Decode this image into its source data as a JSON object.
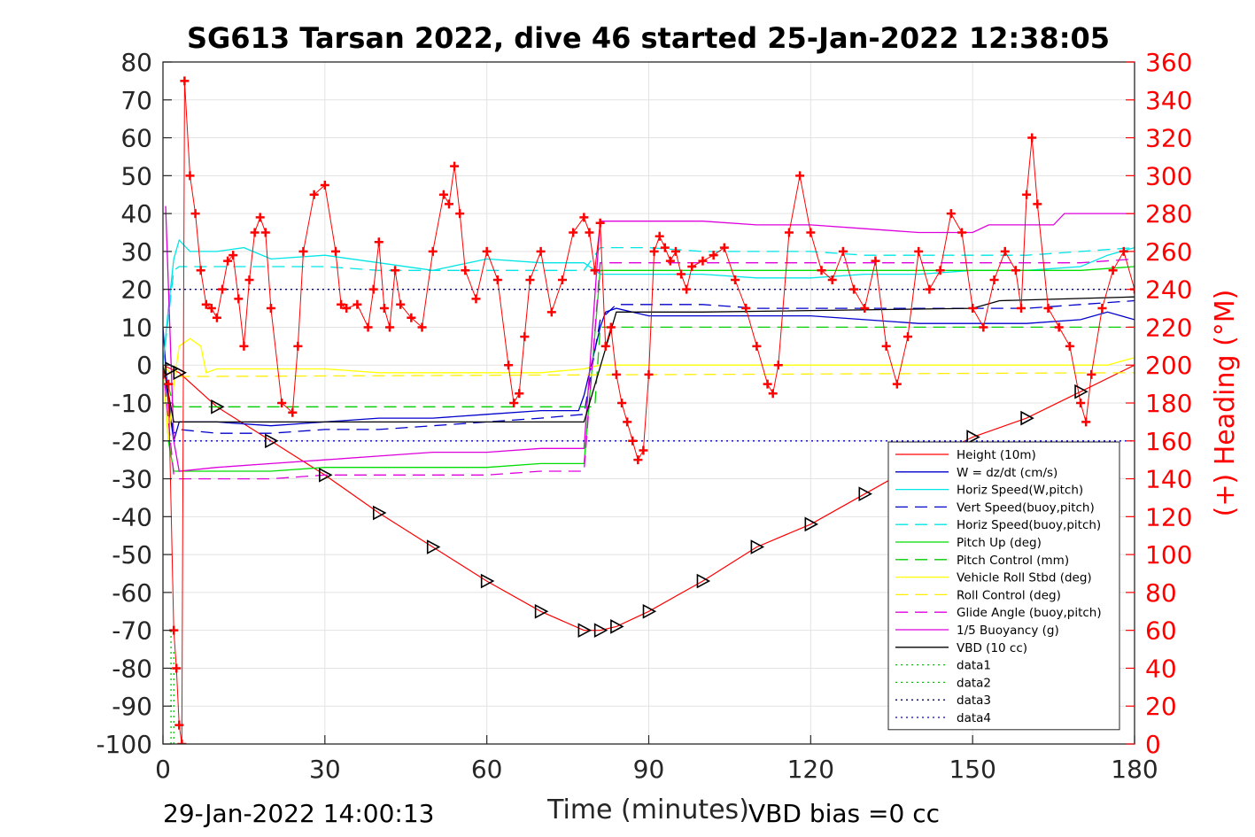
{
  "chart_data": {
    "type": "line",
    "title": "SG613 Tarsan 2022, dive 46 started 25-Jan-2022 12:38:05",
    "xlabel": "Time (minutes)",
    "ylabel_right": "(+) Heading (°M)",
    "footer_left": "29-Jan-2022 14:00:13",
    "footer_right": "VBD bias =0 cc",
    "xlim": [
      0,
      180
    ],
    "ylim_left": [
      -100,
      80
    ],
    "ylim_right": [
      0,
      360
    ],
    "xticks": [
      "0",
      "30",
      "60",
      "90",
      "120",
      "150",
      "180"
    ],
    "yticks_left": [
      "80",
      "70",
      "60",
      "50",
      "40",
      "30",
      "20",
      "10",
      "0",
      "-10",
      "-20",
      "-30",
      "-40",
      "-50",
      "-60",
      "-70",
      "-80",
      "-90",
      "-100"
    ],
    "yticks_right": [
      "360",
      "340",
      "320",
      "300",
      "280",
      "260",
      "240",
      "220",
      "200",
      "180",
      "160",
      "140",
      "120",
      "100",
      "80",
      "60",
      "40",
      "20",
      "0"
    ],
    "grid": true,
    "legend_position": "lower-right inside",
    "legend": [
      {
        "label": "Height (10m)",
        "color": "#ff0000",
        "dash": "solid"
      },
      {
        "label": "W = dz/dt (cm/s)",
        "color": "#0000cc",
        "dash": "solid"
      },
      {
        "label": "Horiz Speed(W,pitch)",
        "color": "#00e5e5",
        "dash": "solid"
      },
      {
        "label": "Vert Speed(buoy,pitch)",
        "color": "#0000cc",
        "dash": "dashed"
      },
      {
        "label": "Horiz Speed(buoy,pitch)",
        "color": "#00e5e5",
        "dash": "dashed"
      },
      {
        "label": "Pitch Up (deg)",
        "color": "#00dd00",
        "dash": "solid"
      },
      {
        "label": "Pitch Control (mm)",
        "color": "#00cc00",
        "dash": "dashed"
      },
      {
        "label": "Vehicle Roll Stbd (deg)",
        "color": "#ffff00",
        "dash": "solid"
      },
      {
        "label": "Roll Control (deg)",
        "color": "#ffee00",
        "dash": "dashed"
      },
      {
        "label": "Glide Angle (buoy,pitch)",
        "color": "#dd00dd",
        "dash": "dashed"
      },
      {
        "label": "1/5 Buoyancy (g)",
        "color": "#dd00dd",
        "dash": "solid"
      },
      {
        "label": "VBD (10 cc)",
        "color": "#000000",
        "dash": "solid"
      },
      {
        "label": "data1",
        "color": "#00cc00",
        "dash": "dotted"
      },
      {
        "label": "data2",
        "color": "#00cc00",
        "dash": "dotted"
      },
      {
        "label": "data3",
        "color": "#000066",
        "dash": "dotted"
      },
      {
        "label": "data4",
        "color": "#0000cc",
        "dash": "dotted"
      }
    ],
    "series": [
      {
        "name": "Height (10m)",
        "color": "#ff0000",
        "axis": "left",
        "x": [
          0,
          1.5,
          3,
          10,
          20,
          30,
          40,
          50,
          60,
          70,
          78,
          81,
          84,
          90,
          100,
          110,
          120,
          130,
          140,
          150,
          160,
          170,
          180
        ],
        "y": [
          0,
          -1,
          -2,
          -11,
          -20,
          -29,
          -39,
          -48,
          -57,
          -65,
          -70,
          -70,
          -69,
          -65,
          -57,
          -48,
          -42,
          -34,
          -26,
          -19,
          -14,
          -7,
          0
        ]
      },
      {
        "name": "W = dz/dt (cm/s)",
        "color": "#0000cc",
        "axis": "left",
        "x": [
          0,
          1,
          2,
          3,
          10,
          20,
          30,
          40,
          50,
          60,
          70,
          77,
          78,
          81,
          82,
          84,
          90,
          100,
          110,
          120,
          130,
          140,
          150,
          160,
          170,
          175,
          180
        ],
        "y": [
          10,
          -10,
          -20,
          -15,
          -15,
          -16,
          -15,
          -14,
          -14,
          -13,
          -12,
          -12,
          -8,
          10,
          14,
          15,
          13,
          13,
          13,
          13,
          12,
          11,
          11,
          11,
          12,
          14,
          12
        ]
      },
      {
        "name": "Horiz Speed(W,pitch)",
        "color": "#00e5e5",
        "axis": "left",
        "x": [
          0,
          1,
          2,
          3,
          5,
          10,
          15,
          20,
          30,
          40,
          50,
          60,
          70,
          78,
          81,
          84,
          90,
          100,
          110,
          120,
          130,
          140,
          150,
          160,
          170,
          175,
          180
        ],
        "y": [
          0,
          15,
          28,
          33,
          30,
          30,
          31,
          28,
          29,
          27,
          25,
          28,
          27,
          27,
          24,
          24,
          24,
          24,
          23,
          23,
          24,
          24,
          25,
          25,
          26,
          29,
          31
        ]
      },
      {
        "name": "Vert Speed(buoy,pitch)",
        "color": "#0000cc",
        "axis": "left",
        "x": [
          0,
          2,
          3,
          10,
          20,
          30,
          40,
          50,
          60,
          70,
          78,
          81,
          84,
          90,
          100,
          110,
          120,
          130,
          140,
          150,
          160,
          170,
          180
        ],
        "y": [
          0,
          -18,
          -17,
          -18,
          -18,
          -17,
          -17,
          -16,
          -15,
          -14,
          -13,
          12,
          16,
          16,
          16,
          15,
          15,
          15,
          15,
          15,
          15,
          16,
          17
        ]
      },
      {
        "name": "Horiz Speed(buoy,pitch)",
        "color": "#00e5e5",
        "axis": "left",
        "x": [
          0,
          2,
          3,
          10,
          20,
          30,
          40,
          50,
          60,
          70,
          78,
          81,
          84,
          90,
          100,
          110,
          120,
          130,
          140,
          150,
          160,
          170,
          180
        ],
        "y": [
          0,
          25,
          26,
          26,
          26,
          26,
          25,
          25,
          25,
          25,
          25,
          31,
          31,
          31,
          30,
          30,
          30,
          29,
          29,
          29,
          29,
          30,
          31
        ]
      },
      {
        "name": "Pitch Up (deg)",
        "color": "#00dd00",
        "axis": "left",
        "x": [
          0,
          1,
          2,
          3,
          10,
          20,
          30,
          40,
          50,
          60,
          70,
          78,
          81,
          84,
          90,
          100,
          110,
          120,
          130,
          140,
          150,
          160,
          170,
          180
        ],
        "y": [
          0,
          -20,
          -28,
          -28,
          -28,
          -28,
          -27,
          -27,
          -27,
          -27,
          -26,
          -26,
          25,
          25,
          25,
          25,
          25,
          25,
          25,
          25,
          25,
          25,
          25,
          26
        ]
      },
      {
        "name": "Pitch Control (mm)",
        "color": "#00cc00",
        "axis": "left",
        "x": [
          0,
          2,
          3,
          80,
          81,
          180
        ],
        "y": [
          0,
          -11,
          -11,
          -11,
          10,
          10
        ]
      },
      {
        "name": "Vehicle Roll Stbd (deg)",
        "color": "#ffff00",
        "axis": "left",
        "x": [
          0,
          1,
          2,
          3,
          5,
          7,
          8,
          10,
          20,
          30,
          40,
          50,
          60,
          70,
          78,
          81,
          84,
          90,
          100,
          110,
          120,
          130,
          140,
          150,
          160,
          170,
          175,
          180
        ],
        "y": [
          0,
          -20,
          -5,
          5,
          7,
          5,
          -2,
          -1,
          -1,
          -1,
          -2,
          -2,
          -2,
          -2,
          -1,
          0,
          0,
          0,
          0,
          0,
          0,
          0,
          0,
          0,
          0,
          0,
          0,
          2
        ]
      },
      {
        "name": "Roll Control (deg)",
        "color": "#ffee00",
        "axis": "left",
        "x": [
          0,
          2,
          3,
          180
        ],
        "y": [
          0,
          -3,
          -3,
          -2
        ]
      },
      {
        "name": "Glide Angle (buoy,pitch)",
        "color": "#dd00dd",
        "axis": "left",
        "x": [
          0,
          2,
          3,
          10,
          20,
          30,
          40,
          50,
          60,
          70,
          78,
          81,
          84,
          90,
          100,
          110,
          120,
          130,
          140,
          150,
          160,
          170,
          180
        ],
        "y": [
          0,
          -29,
          -30,
          -30,
          -30,
          -29,
          -29,
          -29,
          -29,
          -28,
          -28,
          27,
          27,
          27,
          27,
          27,
          27,
          27,
          27,
          27,
          27,
          27,
          28
        ]
      },
      {
        "name": "1/5 Buoyancy (g)",
        "color": "#dd00dd",
        "axis": "left",
        "x": [
          0.5,
          2,
          3,
          10,
          20,
          30,
          40,
          50,
          60,
          70,
          78,
          81,
          84,
          90,
          100,
          110,
          120,
          130,
          140,
          150,
          153,
          165,
          167,
          180
        ],
        "y": [
          42,
          -20,
          -28,
          -27,
          -26,
          -25,
          -24,
          -23,
          -23,
          -22,
          -22,
          38,
          38,
          38,
          38,
          37,
          37,
          36,
          35,
          35,
          37,
          37,
          40,
          40
        ]
      },
      {
        "name": "VBD (10 cc)",
        "color": "#000000",
        "axis": "left",
        "x": [
          0,
          2,
          3,
          78,
          84,
          100,
          150,
          155,
          180
        ],
        "y": [
          0,
          -15,
          -15,
          -15,
          14,
          14,
          15,
          17,
          18
        ]
      },
      {
        "name": "data1",
        "color": "#00cc00",
        "axis": "left",
        "x": [
          1.5,
          1.5
        ],
        "y": [
          -100,
          -70
        ]
      },
      {
        "name": "data2",
        "color": "#00cc00",
        "axis": "left",
        "x": [
          2,
          2
        ],
        "y": [
          -100,
          -75
        ]
      },
      {
        "name": "data3",
        "color": "#000066",
        "axis": "left",
        "x": [
          0,
          180
        ],
        "y": [
          20,
          20
        ]
      },
      {
        "name": "data4",
        "color": "#0000cc",
        "axis": "left",
        "x": [
          0,
          180
        ],
        "y": [
          -20,
          -20
        ]
      },
      {
        "name": "Heading",
        "color": "#ff0000",
        "axis": "right",
        "marker": "+",
        "x": [
          0,
          1,
          2,
          2.5,
          3,
          3.5,
          4,
          5,
          6,
          7,
          8,
          9,
          10,
          11,
          12,
          13,
          14,
          15,
          16,
          17,
          18,
          19,
          20,
          22,
          24,
          25,
          26,
          28,
          30,
          32,
          33,
          34,
          36,
          38,
          39,
          40,
          41,
          42,
          43,
          44,
          46,
          48,
          50,
          52,
          53,
          54,
          55,
          56,
          58,
          60,
          62,
          64,
          65,
          66,
          67,
          68,
          70,
          72,
          74,
          76,
          78,
          79,
          80,
          81,
          82,
          83,
          84,
          85,
          86,
          87,
          88,
          89,
          90,
          91,
          92,
          93,
          94,
          95,
          96,
          97,
          98,
          100,
          102,
          104,
          106,
          108,
          110,
          112,
          113,
          114,
          116,
          118,
          120,
          122,
          124,
          126,
          128,
          130,
          132,
          134,
          136,
          138,
          140,
          142,
          144,
          146,
          148,
          150,
          152,
          154,
          156,
          158,
          159,
          160,
          161,
          162,
          164,
          166,
          168,
          170,
          171,
          172,
          174,
          176,
          178,
          180
        ],
        "y": [
          195,
          190,
          60,
          40,
          10,
          0,
          350,
          300,
          280,
          250,
          232,
          230,
          225,
          240,
          255,
          258,
          235,
          210,
          245,
          270,
          278,
          270,
          230,
          180,
          175,
          210,
          260,
          290,
          295,
          260,
          232,
          230,
          232,
          220,
          240,
          265,
          230,
          220,
          250,
          232,
          225,
          220,
          260,
          290,
          285,
          305,
          280,
          250,
          235,
          260,
          245,
          200,
          180,
          185,
          215,
          245,
          260,
          228,
          245,
          270,
          278,
          270,
          250,
          275,
          210,
          220,
          195,
          180,
          170,
          160,
          150,
          155,
          195,
          260,
          268,
          262,
          255,
          260,
          248,
          240,
          252,
          255,
          258,
          262,
          245,
          230,
          210,
          190,
          185,
          200,
          270,
          300,
          270,
          250,
          245,
          260,
          240,
          230,
          255,
          210,
          190,
          215,
          260,
          240,
          250,
          280,
          270,
          230,
          220,
          245,
          260,
          250,
          230,
          290,
          320,
          285,
          230,
          220,
          210,
          180,
          170,
          195,
          230,
          250,
          260,
          240
        ]
      }
    ]
  }
}
